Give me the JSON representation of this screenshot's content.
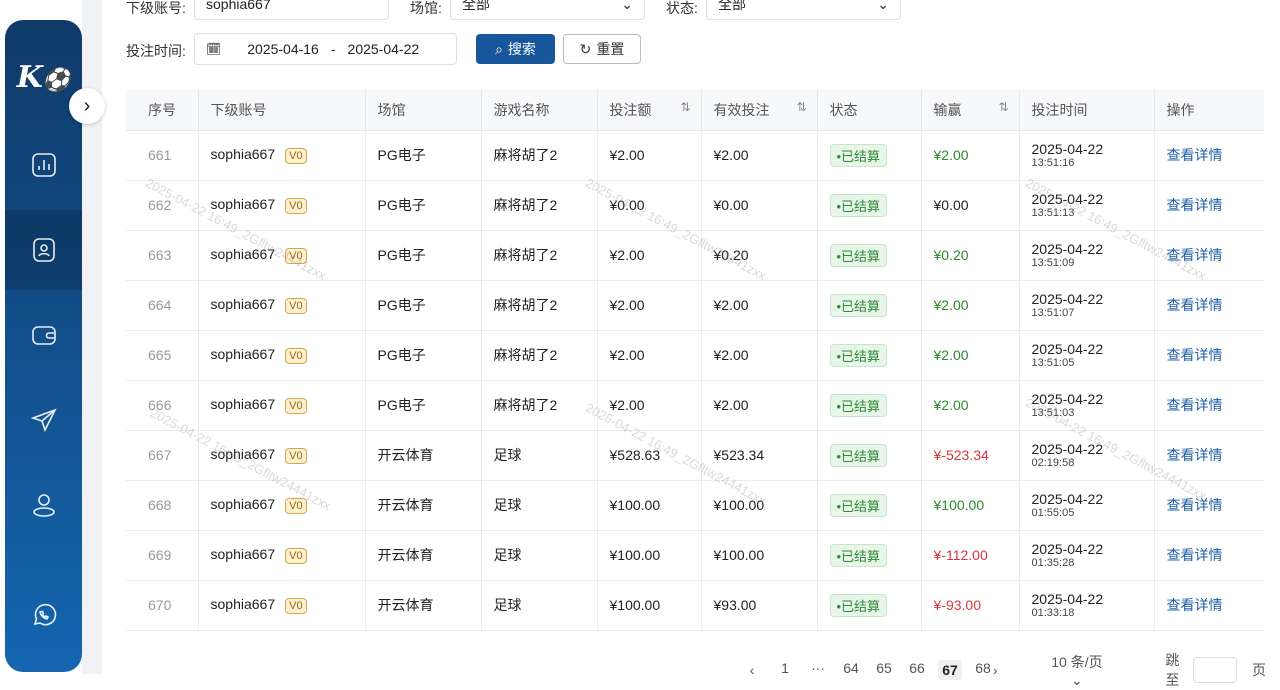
{
  "sidebar": {
    "logo": "K⚽",
    "items": [
      {
        "icon": "chart-icon"
      },
      {
        "icon": "user-card-icon",
        "active": true
      },
      {
        "icon": "wallet-icon"
      },
      {
        "icon": "send-icon"
      },
      {
        "icon": "user-icon"
      },
      {
        "icon": "whatsapp-icon"
      }
    ]
  },
  "filters": {
    "account_label": "下级账号:",
    "account_value": "sophia667",
    "venue_label": "场馆:",
    "venue_value": "全部",
    "status_label": "状态:",
    "status_value": "全部",
    "time_label": "投注时间:",
    "date_start": "2025-04-16",
    "date_sep": "-",
    "date_end": "2025-04-22",
    "search_label": "搜索",
    "reset_label": "重置"
  },
  "table": {
    "headers": [
      "序号",
      "下级账号",
      "场馆",
      "游戏名称",
      "投注额",
      "有效投注",
      "状态",
      "输赢",
      "投注时间",
      "操作"
    ],
    "rows": [
      {
        "seq": "661",
        "account": "sophia667",
        "vip": "V0",
        "venue": "PG电子",
        "game": "麻将胡了2",
        "bet": "¥2.00",
        "valid": "¥2.00",
        "status": "•已结算",
        "win": "¥2.00",
        "win_sign": "pos",
        "date": "2025-04-22",
        "time": "13:51:16",
        "action": "查看详情"
      },
      {
        "seq": "662",
        "account": "sophia667",
        "vip": "V0",
        "venue": "PG电子",
        "game": "麻将胡了2",
        "bet": "¥0.00",
        "valid": "¥0.00",
        "status": "•已结算",
        "win": "¥0.00",
        "win_sign": "zero",
        "date": "2025-04-22",
        "time": "13:51:13",
        "action": "查看详情"
      },
      {
        "seq": "663",
        "account": "sophia667",
        "vip": "V0",
        "venue": "PG电子",
        "game": "麻将胡了2",
        "bet": "¥2.00",
        "valid": "¥0.20",
        "status": "•已结算",
        "win": "¥0.20",
        "win_sign": "pos",
        "date": "2025-04-22",
        "time": "13:51:09",
        "action": "查看详情"
      },
      {
        "seq": "664",
        "account": "sophia667",
        "vip": "V0",
        "venue": "PG电子",
        "game": "麻将胡了2",
        "bet": "¥2.00",
        "valid": "¥2.00",
        "status": "•已结算",
        "win": "¥2.00",
        "win_sign": "pos",
        "date": "2025-04-22",
        "time": "13:51:07",
        "action": "查看详情"
      },
      {
        "seq": "665",
        "account": "sophia667",
        "vip": "V0",
        "venue": "PG电子",
        "game": "麻将胡了2",
        "bet": "¥2.00",
        "valid": "¥2.00",
        "status": "•已结算",
        "win": "¥2.00",
        "win_sign": "pos",
        "date": "2025-04-22",
        "time": "13:51:05",
        "action": "查看详情"
      },
      {
        "seq": "666",
        "account": "sophia667",
        "vip": "V0",
        "venue": "PG电子",
        "game": "麻将胡了2",
        "bet": "¥2.00",
        "valid": "¥2.00",
        "status": "•已结算",
        "win": "¥2.00",
        "win_sign": "pos",
        "date": "2025-04-22",
        "time": "13:51:03",
        "action": "查看详情"
      },
      {
        "seq": "667",
        "account": "sophia667",
        "vip": "V0",
        "venue": "开云体育",
        "game": "足球",
        "bet": "¥528.63",
        "valid": "¥523.34",
        "status": "•已结算",
        "win": "¥-523.34",
        "win_sign": "neg",
        "date": "2025-04-22",
        "time": "02:19:58",
        "action": "查看详情"
      },
      {
        "seq": "668",
        "account": "sophia667",
        "vip": "V0",
        "venue": "开云体育",
        "game": "足球",
        "bet": "¥100.00",
        "valid": "¥100.00",
        "status": "•已结算",
        "win": "¥100.00",
        "win_sign": "pos",
        "date": "2025-04-22",
        "time": "01:55:05",
        "action": "查看详情"
      },
      {
        "seq": "669",
        "account": "sophia667",
        "vip": "V0",
        "venue": "开云体育",
        "game": "足球",
        "bet": "¥100.00",
        "valid": "¥100.00",
        "status": "•已结算",
        "win": "¥-112.00",
        "win_sign": "neg",
        "date": "2025-04-22",
        "time": "01:35:28",
        "action": "查看详情"
      },
      {
        "seq": "670",
        "account": "sophia667",
        "vip": "V0",
        "venue": "开云体育",
        "game": "足球",
        "bet": "¥100.00",
        "valid": "¥93.00",
        "status": "•已结算",
        "win": "¥-93.00",
        "win_sign": "neg",
        "date": "2025-04-22",
        "time": "01:33:18",
        "action": "查看详情"
      }
    ]
  },
  "pagination": {
    "prev": "‹",
    "pages": [
      "1",
      "···",
      "64",
      "65",
      "66",
      "67",
      "68"
    ],
    "current": "67",
    "next": "›",
    "page_size": "10 条/页",
    "jump_label": "跳至",
    "jump_value": "",
    "page_suffix": "页"
  },
  "watermark": "2025-04-22 16:49_2Gfltw24441zxx",
  "colors": {
    "primary": "#17569a",
    "positive": "#2d8a2d",
    "negative": "#d9363e"
  }
}
